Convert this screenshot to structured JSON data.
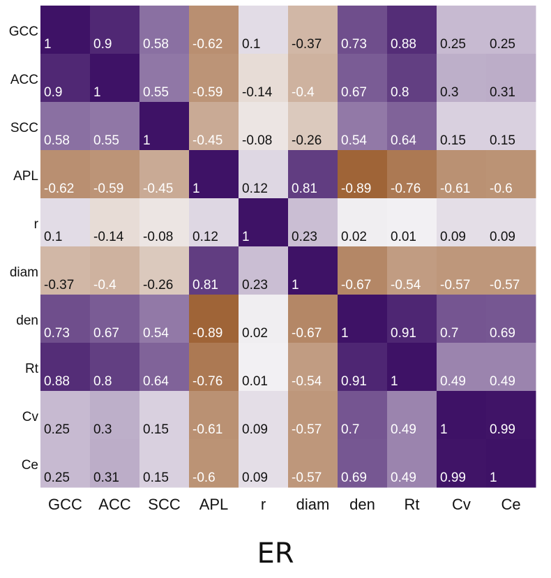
{
  "chart_data": {
    "type": "heatmap",
    "title": "ER",
    "row_labels": [
      "GCC",
      "ACC",
      "SCC",
      "APL",
      "r",
      "diam",
      "den",
      "Rt",
      "Cv",
      "Ce"
    ],
    "col_labels": [
      "GCC",
      "ACC",
      "SCC",
      "APL",
      "r",
      "diam",
      "den",
      "Rt",
      "Cv",
      "Ce"
    ],
    "values": [
      [
        1,
        0.9,
        0.58,
        -0.62,
        0.1,
        -0.37,
        0.73,
        0.88,
        0.25,
        0.25
      ],
      [
        0.9,
        1,
        0.55,
        -0.59,
        -0.14,
        -0.4,
        0.67,
        0.8,
        0.3,
        0.31
      ],
      [
        0.58,
        0.55,
        1,
        -0.45,
        -0.08,
        -0.26,
        0.54,
        0.64,
        0.15,
        0.15
      ],
      [
        -0.62,
        -0.59,
        -0.45,
        1,
        0.12,
        0.81,
        -0.89,
        -0.76,
        -0.61,
        -0.6
      ],
      [
        0.1,
        -0.14,
        -0.08,
        0.12,
        1,
        0.23,
        0.02,
        0.01,
        0.09,
        0.09
      ],
      [
        -0.37,
        -0.4,
        -0.26,
        0.81,
        0.23,
        1,
        -0.67,
        -0.54,
        -0.57,
        -0.57
      ],
      [
        0.73,
        0.67,
        0.54,
        -0.89,
        0.02,
        -0.67,
        1,
        0.91,
        0.7,
        0.69
      ],
      [
        0.88,
        0.8,
        0.64,
        -0.76,
        0.01,
        -0.54,
        0.91,
        1,
        0.49,
        0.49
      ],
      [
        0.25,
        0.3,
        0.15,
        -0.61,
        0.09,
        -0.57,
        0.7,
        0.49,
        1,
        0.99
      ],
      [
        0.25,
        0.31,
        0.15,
        -0.6,
        0.09,
        -0.57,
        0.69,
        0.49,
        0.99,
        1
      ]
    ],
    "value_range": [
      -1,
      1
    ],
    "colors": {
      "positive": "#3e1266",
      "neutral": "#f4f2f4",
      "negative": "#955320",
      "label_light": "#ffffff",
      "label_dark": "#111111"
    }
  }
}
